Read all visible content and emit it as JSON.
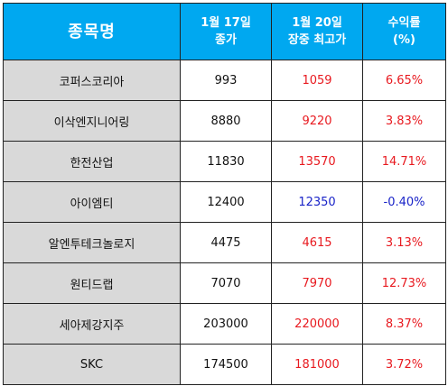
{
  "table": {
    "headers": {
      "name": "종목명",
      "close_line1": "1월 17일",
      "close_line2": "종가",
      "high_line1": "1월 20일",
      "high_line2": "장중 최고가",
      "return_line1": "수익률",
      "return_line2": "(%)"
    },
    "rows": [
      {
        "name": "코퍼스코리아",
        "close": "993",
        "high": "1059",
        "return": "6.65%",
        "direction": "up"
      },
      {
        "name": "이삭엔지니어링",
        "close": "8880",
        "high": "9220",
        "return": "3.83%",
        "direction": "up"
      },
      {
        "name": "한전산업",
        "close": "11830",
        "high": "13570",
        "return": "14.71%",
        "direction": "up"
      },
      {
        "name": "아이엠티",
        "close": "12400",
        "high": "12350",
        "return": "-0.40%",
        "direction": "down"
      },
      {
        "name": "알엔투테크놀로지",
        "close": "4475",
        "high": "4615",
        "return": "3.13%",
        "direction": "up"
      },
      {
        "name": "원티드랩",
        "close": "7070",
        "high": "7970",
        "return": "12.73%",
        "direction": "up"
      },
      {
        "name": "세아제강지주",
        "close": "203000",
        "high": "220000",
        "return": "8.37%",
        "direction": "up"
      },
      {
        "name": "SKC",
        "close": "174500",
        "high": "181000",
        "return": "3.72%",
        "direction": "up"
      }
    ]
  },
  "colors": {
    "header_bg": "#00a8f0",
    "name_cell_bg": "#d9d9d9",
    "up": "#e8191f",
    "down": "#1a24c8"
  }
}
